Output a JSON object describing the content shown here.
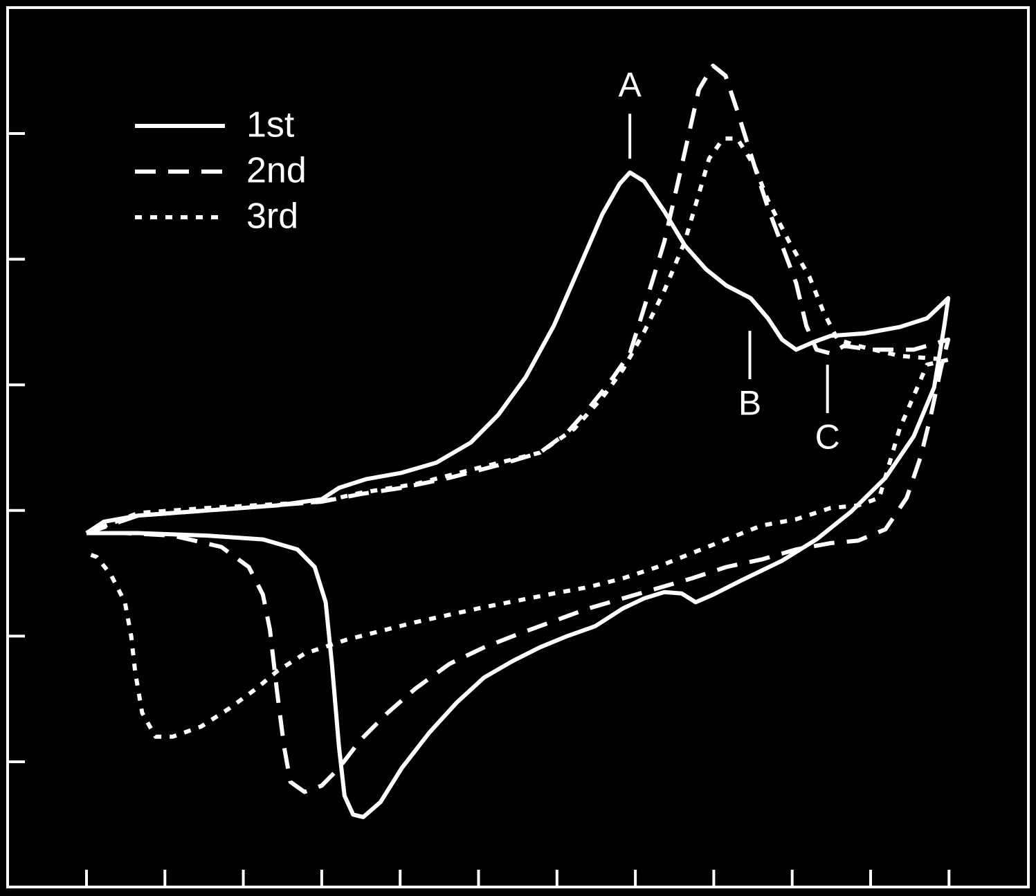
{
  "chart_data": {
    "type": "line",
    "xlim": [
      -1,
      12
    ],
    "ylim": [
      -1,
      6
    ],
    "xticks": [
      0,
      1,
      2,
      3,
      4,
      5,
      6,
      7,
      8,
      9,
      10,
      11
    ],
    "yticks": [
      0,
      1,
      2,
      3,
      4,
      5
    ],
    "legend": "upper left",
    "series": [
      {
        "name": "1st",
        "color": "#ffffff",
        "dash": "solid",
        "x": [
          0,
          0.22,
          0.66,
          1.54,
          2.43,
          3.0,
          3.22,
          3.57,
          4.02,
          4.46,
          4.9,
          5.25,
          5.6,
          5.96,
          6.31,
          6.58,
          6.8,
          6.93,
          7.11,
          7.37,
          7.63,
          7.9,
          8.16,
          8.47,
          8.69,
          8.87,
          9.05,
          9.27,
          9.49,
          9.93,
          10.37,
          10.72,
          10.99,
          10.94,
          10.81,
          10.55,
          10.19,
          9.75,
          9.31,
          8.87,
          8.34,
          7.99,
          7.77,
          7.59,
          7.37,
          7.11,
          6.84,
          6.49,
          6.13,
          5.78,
          5.43,
          5.07,
          4.72,
          4.37,
          4.02,
          3.75,
          3.53,
          3.4,
          3.29,
          3.22,
          3.13,
          3.05,
          2.91,
          2.69,
          2.25,
          1.54,
          0.66,
          0
        ],
        "values": [
          1.82,
          1.91,
          1.96,
          2.0,
          2.04,
          2.09,
          2.18,
          2.25,
          2.3,
          2.38,
          2.54,
          2.76,
          3.06,
          3.47,
          3.97,
          4.36,
          4.6,
          4.69,
          4.62,
          4.38,
          4.11,
          3.92,
          3.79,
          3.69,
          3.53,
          3.36,
          3.28,
          3.34,
          3.39,
          3.41,
          3.46,
          3.53,
          3.69,
          3.47,
          2.98,
          2.59,
          2.26,
          1.99,
          1.77,
          1.6,
          1.44,
          1.33,
          1.27,
          1.34,
          1.35,
          1.3,
          1.22,
          1.08,
          1.0,
          0.91,
          0.8,
          0.67,
          0.47,
          0.23,
          -0.05,
          -0.32,
          -0.44,
          -0.42,
          -0.27,
          0.12,
          0.78,
          1.27,
          1.55,
          1.69,
          1.77,
          1.8,
          1.82,
          1.82
        ]
      },
      {
        "name": "2nd",
        "color": "#ffffff",
        "dash": "dashed",
        "x": [
          0,
          0.66,
          1.54,
          3.0,
          3.49,
          4.02,
          4.63,
          5.25,
          5.78,
          6.13,
          6.4,
          6.66,
          6.93,
          7.15,
          7.37,
          7.59,
          7.81,
          7.99,
          8.15,
          8.3,
          8.52,
          8.69,
          8.87,
          9.05,
          9.18,
          9.31,
          9.49,
          9.66,
          10.02,
          10.55,
          10.99,
          10.9,
          10.77,
          10.64,
          10.46,
          10.19,
          9.84,
          9.49,
          9.05,
          8.61,
          8.16,
          7.72,
          7.28,
          6.84,
          6.4,
          5.96,
          5.52,
          5.07,
          4.63,
          4.19,
          3.84,
          3.49,
          3.22,
          3.0,
          2.78,
          2.6,
          2.52,
          2.43,
          2.34,
          2.25,
          2.07,
          1.72,
          1.1,
          0.49,
          0
        ],
        "values": [
          1.82,
          1.96,
          2.0,
          2.07,
          2.13,
          2.18,
          2.26,
          2.36,
          2.46,
          2.62,
          2.81,
          3.01,
          3.25,
          3.69,
          4.14,
          4.74,
          5.35,
          5.54,
          5.46,
          5.18,
          4.74,
          4.41,
          4.11,
          3.81,
          3.47,
          3.28,
          3.25,
          3.31,
          3.28,
          3.28,
          3.36,
          3.14,
          2.76,
          2.43,
          2.1,
          1.85,
          1.76,
          1.74,
          1.69,
          1.61,
          1.55,
          1.46,
          1.38,
          1.3,
          1.22,
          1.12,
          1.02,
          0.91,
          0.78,
          0.58,
          0.39,
          0.17,
          -0.05,
          -0.19,
          -0.24,
          -0.16,
          0.12,
          0.56,
          1.05,
          1.33,
          1.55,
          1.71,
          1.8,
          1.82,
          1.82
        ]
      },
      {
        "name": "3rd",
        "color": "#ffffff",
        "dash": "dotted",
        "x": [
          0,
          0.66,
          1.54,
          3.0,
          3.49,
          4.19,
          5.07,
          5.78,
          6.22,
          6.58,
          6.84,
          7.11,
          7.37,
          7.63,
          7.81,
          7.94,
          8.12,
          8.3,
          8.52,
          8.69,
          8.96,
          9.22,
          9.4,
          9.58,
          9.84,
          10.37,
          10.99,
          10.72,
          10.37,
          10.11,
          9.84,
          9.49,
          9.05,
          8.61,
          8.16,
          7.72,
          7.28,
          6.84,
          6.4,
          5.96,
          5.07,
          4.19,
          3.31,
          2.78,
          2.43,
          2.16,
          1.81,
          1.46,
          1.1,
          0.88,
          0.71,
          0.62,
          0.57,
          0.49,
          0.31,
          0.13,
          0
        ],
        "values": [
          1.82,
          1.98,
          2.02,
          2.07,
          2.14,
          2.21,
          2.35,
          2.46,
          2.65,
          2.9,
          3.12,
          3.42,
          3.75,
          4.14,
          4.52,
          4.8,
          4.96,
          4.96,
          4.74,
          4.47,
          4.14,
          3.86,
          3.58,
          3.36,
          3.31,
          3.23,
          3.2,
          3.16,
          2.65,
          2.1,
          2.04,
          2.02,
          1.93,
          1.88,
          1.77,
          1.66,
          1.55,
          1.46,
          1.39,
          1.34,
          1.23,
          1.11,
          0.97,
          0.86,
          0.72,
          0.58,
          0.42,
          0.28,
          0.2,
          0.2,
          0.39,
          0.72,
          1.0,
          1.27,
          1.49,
          1.63,
          1.66
        ]
      }
    ],
    "annotations": [
      {
        "text": "A",
        "x": 6.93,
        "y": 4.8,
        "side": "above"
      },
      {
        "text": "B",
        "x": 8.46,
        "y": 3.43,
        "side": "below"
      },
      {
        "text": "C",
        "x": 9.45,
        "y": 3.16,
        "side": "below"
      }
    ]
  }
}
